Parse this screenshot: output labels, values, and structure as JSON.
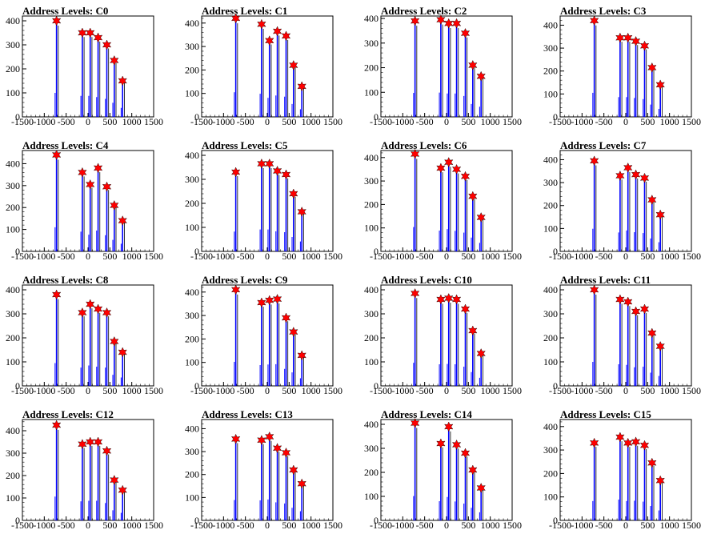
{
  "chart_data": [
    {
      "title": "Address Levels: C0",
      "type": "bar",
      "xlim": [
        -1500,
        1500
      ],
      "ylim": [
        0,
        420
      ],
      "x_ticks": [
        -1500,
        -1000,
        -500,
        0,
        500,
        1000,
        1500
      ],
      "y_ticks": [
        0,
        100,
        200,
        300,
        400
      ],
      "peaks": [
        {
          "x": -720,
          "y": 400
        },
        {
          "x": -130,
          "y": 350
        },
        {
          "x": 50,
          "y": 350
        },
        {
          "x": 230,
          "y": 330
        },
        {
          "x": 430,
          "y": 300
        },
        {
          "x": 600,
          "y": 235
        },
        {
          "x": 790,
          "y": 150
        }
      ]
    },
    {
      "title": "Address Levels: C1",
      "type": "bar",
      "xlim": [
        -1500,
        1500
      ],
      "ylim": [
        0,
        430
      ],
      "x_ticks": [
        -1500,
        -1000,
        -500,
        0,
        500,
        1000,
        1500
      ],
      "y_ticks": [
        0,
        100,
        200,
        300,
        400
      ],
      "peaks": [
        {
          "x": -720,
          "y": 420
        },
        {
          "x": -130,
          "y": 395
        },
        {
          "x": 50,
          "y": 325
        },
        {
          "x": 230,
          "y": 365
        },
        {
          "x": 430,
          "y": 345
        },
        {
          "x": 600,
          "y": 220
        },
        {
          "x": 790,
          "y": 130
        }
      ]
    },
    {
      "title": "Address Levels: C2",
      "type": "bar",
      "xlim": [
        -1500,
        1500
      ],
      "ylim": [
        0,
        410
      ],
      "x_ticks": [
        -1500,
        -1000,
        -500,
        0,
        500,
        1000,
        1500
      ],
      "y_ticks": [
        0,
        100,
        200,
        300,
        400
      ],
      "peaks": [
        {
          "x": -720,
          "y": 390
        },
        {
          "x": -130,
          "y": 395
        },
        {
          "x": 50,
          "y": 380
        },
        {
          "x": 230,
          "y": 380
        },
        {
          "x": 430,
          "y": 340
        },
        {
          "x": 600,
          "y": 210
        },
        {
          "x": 790,
          "y": 165
        }
      ]
    },
    {
      "title": "Address Levels: C3",
      "type": "bar",
      "xlim": [
        -1500,
        1500
      ],
      "ylim": [
        0,
        440
      ],
      "x_ticks": [
        -1500,
        -1000,
        -500,
        0,
        500,
        1000,
        1500
      ],
      "y_ticks": [
        0,
        100,
        200,
        300,
        400
      ],
      "peaks": [
        {
          "x": -720,
          "y": 420
        },
        {
          "x": -130,
          "y": 345
        },
        {
          "x": 50,
          "y": 345
        },
        {
          "x": 230,
          "y": 330
        },
        {
          "x": 430,
          "y": 310
        },
        {
          "x": 600,
          "y": 215
        },
        {
          "x": 790,
          "y": 140
        }
      ]
    },
    {
      "title": "Address Levels: C4",
      "type": "bar",
      "xlim": [
        -1500,
        1500
      ],
      "ylim": [
        0,
        460
      ],
      "x_ticks": [
        -1500,
        -1000,
        -500,
        0,
        500,
        1000,
        1500
      ],
      "y_ticks": [
        0,
        100,
        200,
        300,
        400
      ],
      "peaks": [
        {
          "x": -720,
          "y": 440
        },
        {
          "x": -130,
          "y": 360
        },
        {
          "x": 50,
          "y": 305
        },
        {
          "x": 230,
          "y": 380
        },
        {
          "x": 430,
          "y": 295
        },
        {
          "x": 600,
          "y": 210
        },
        {
          "x": 790,
          "y": 140
        }
      ]
    },
    {
      "title": "Address Levels: C5",
      "type": "bar",
      "xlim": [
        -1500,
        1500
      ],
      "ylim": [
        0,
        420
      ],
      "x_ticks": [
        -1500,
        -1000,
        -500,
        0,
        500,
        1000,
        1500
      ],
      "y_ticks": [
        0,
        100,
        200,
        300,
        400
      ],
      "peaks": [
        {
          "x": -720,
          "y": 330
        },
        {
          "x": -130,
          "y": 365
        },
        {
          "x": 50,
          "y": 365
        },
        {
          "x": 230,
          "y": 335
        },
        {
          "x": 430,
          "y": 320
        },
        {
          "x": 600,
          "y": 240
        },
        {
          "x": 790,
          "y": 165
        }
      ]
    },
    {
      "title": "Address Levels: C6",
      "type": "bar",
      "xlim": [
        -1500,
        1500
      ],
      "ylim": [
        0,
        430
      ],
      "x_ticks": [
        -1500,
        -1000,
        -500,
        0,
        500,
        1000,
        1500
      ],
      "y_ticks": [
        0,
        100,
        200,
        300,
        400
      ],
      "peaks": [
        {
          "x": -720,
          "y": 415
        },
        {
          "x": -130,
          "y": 355
        },
        {
          "x": 50,
          "y": 380
        },
        {
          "x": 230,
          "y": 350
        },
        {
          "x": 430,
          "y": 320
        },
        {
          "x": 600,
          "y": 235
        },
        {
          "x": 790,
          "y": 145
        }
      ]
    },
    {
      "title": "Address Levels: C7",
      "type": "bar",
      "xlim": [
        -1500,
        1500
      ],
      "ylim": [
        0,
        440
      ],
      "x_ticks": [
        -1500,
        -1000,
        -500,
        0,
        500,
        1000,
        1500
      ],
      "y_ticks": [
        0,
        100,
        200,
        300,
        400
      ],
      "peaks": [
        {
          "x": -720,
          "y": 395
        },
        {
          "x": -130,
          "y": 330
        },
        {
          "x": 50,
          "y": 365
        },
        {
          "x": 230,
          "y": 335
        },
        {
          "x": 430,
          "y": 320
        },
        {
          "x": 600,
          "y": 225
        },
        {
          "x": 790,
          "y": 160
        }
      ]
    },
    {
      "title": "Address Levels: C8",
      "type": "bar",
      "xlim": [
        -1500,
        1500
      ],
      "ylim": [
        0,
        420
      ],
      "x_ticks": [
        -1500,
        -1000,
        -500,
        0,
        500,
        1000,
        1500
      ],
      "y_ticks": [
        0,
        100,
        200,
        300,
        400
      ],
      "peaks": [
        {
          "x": -720,
          "y": 380
        },
        {
          "x": -130,
          "y": 305
        },
        {
          "x": 50,
          "y": 340
        },
        {
          "x": 230,
          "y": 320
        },
        {
          "x": 430,
          "y": 305
        },
        {
          "x": 600,
          "y": 185
        },
        {
          "x": 790,
          "y": 140
        }
      ]
    },
    {
      "title": "Address Levels: C9",
      "type": "bar",
      "xlim": [
        -1500,
        1500
      ],
      "ylim": [
        0,
        430
      ],
      "x_ticks": [
        -1500,
        -1000,
        -500,
        0,
        500,
        1000,
        1500
      ],
      "y_ticks": [
        0,
        100,
        200,
        300,
        400
      ],
      "peaks": [
        {
          "x": -720,
          "y": 410
        },
        {
          "x": -130,
          "y": 355
        },
        {
          "x": 50,
          "y": 365
        },
        {
          "x": 230,
          "y": 370
        },
        {
          "x": 430,
          "y": 290
        },
        {
          "x": 600,
          "y": 230
        },
        {
          "x": 790,
          "y": 130
        }
      ]
    },
    {
      "title": "Address Levels: C10",
      "type": "bar",
      "xlim": [
        -1500,
        1500
      ],
      "ylim": [
        0,
        420
      ],
      "x_ticks": [
        -1500,
        -1000,
        -500,
        0,
        500,
        1000,
        1500
      ],
      "y_ticks": [
        0,
        100,
        200,
        300,
        400
      ],
      "peaks": [
        {
          "x": -720,
          "y": 385
        },
        {
          "x": -130,
          "y": 360
        },
        {
          "x": 50,
          "y": 365
        },
        {
          "x": 230,
          "y": 360
        },
        {
          "x": 430,
          "y": 320
        },
        {
          "x": 600,
          "y": 230
        },
        {
          "x": 790,
          "y": 135
        }
      ]
    },
    {
      "title": "Address Levels: C11",
      "type": "bar",
      "xlim": [
        -1500,
        1500
      ],
      "ylim": [
        0,
        420
      ],
      "x_ticks": [
        -1500,
        -1000,
        -500,
        0,
        500,
        1000,
        1500
      ],
      "y_ticks": [
        0,
        100,
        200,
        300,
        400
      ],
      "peaks": [
        {
          "x": -720,
          "y": 400
        },
        {
          "x": -130,
          "y": 360
        },
        {
          "x": 50,
          "y": 350
        },
        {
          "x": 230,
          "y": 310
        },
        {
          "x": 430,
          "y": 320
        },
        {
          "x": 600,
          "y": 220
        },
        {
          "x": 790,
          "y": 165
        }
      ]
    },
    {
      "title": "Address Levels: C12",
      "type": "bar",
      "xlim": [
        -1500,
        1500
      ],
      "ylim": [
        0,
        450
      ],
      "x_ticks": [
        -1500,
        -1000,
        -500,
        0,
        500,
        1000,
        1500
      ],
      "y_ticks": [
        0,
        100,
        200,
        300,
        400
      ],
      "peaks": [
        {
          "x": -720,
          "y": 425
        },
        {
          "x": -130,
          "y": 340
        },
        {
          "x": 50,
          "y": 350
        },
        {
          "x": 230,
          "y": 350
        },
        {
          "x": 430,
          "y": 310
        },
        {
          "x": 600,
          "y": 180
        },
        {
          "x": 790,
          "y": 135
        }
      ]
    },
    {
      "title": "Address Levels: C13",
      "type": "bar",
      "xlim": [
        -1500,
        1500
      ],
      "ylim": [
        0,
        440
      ],
      "x_ticks": [
        -1500,
        -1000,
        -500,
        0,
        500,
        1000,
        1500
      ],
      "y_ticks": [
        0,
        100,
        200,
        300,
        400
      ],
      "peaks": [
        {
          "x": -720,
          "y": 355
        },
        {
          "x": -130,
          "y": 350
        },
        {
          "x": 50,
          "y": 365
        },
        {
          "x": 230,
          "y": 315
        },
        {
          "x": 430,
          "y": 295
        },
        {
          "x": 600,
          "y": 220
        },
        {
          "x": 790,
          "y": 160
        }
      ]
    },
    {
      "title": "Address Levels: C14",
      "type": "bar",
      "xlim": [
        -1500,
        1500
      ],
      "ylim": [
        0,
        420
      ],
      "x_ticks": [
        -1500,
        -1000,
        -500,
        0,
        500,
        1000,
        1500
      ],
      "y_ticks": [
        0,
        100,
        200,
        300,
        400
      ],
      "peaks": [
        {
          "x": -720,
          "y": 405
        },
        {
          "x": -130,
          "y": 320
        },
        {
          "x": 50,
          "y": 390
        },
        {
          "x": 230,
          "y": 315
        },
        {
          "x": 430,
          "y": 280
        },
        {
          "x": 600,
          "y": 210
        },
        {
          "x": 790,
          "y": 135
        }
      ]
    },
    {
      "title": "Address Levels: C15",
      "type": "bar",
      "xlim": [
        -1500,
        1500
      ],
      "ylim": [
        0,
        430
      ],
      "x_ticks": [
        -1500,
        -1000,
        -500,
        0,
        500,
        1000,
        1500
      ],
      "y_ticks": [
        0,
        100,
        200,
        300,
        400
      ],
      "peaks": [
        {
          "x": -720,
          "y": 330
        },
        {
          "x": -130,
          "y": 355
        },
        {
          "x": 50,
          "y": 330
        },
        {
          "x": 230,
          "y": 335
        },
        {
          "x": 430,
          "y": 320
        },
        {
          "x": 600,
          "y": 245
        },
        {
          "x": 790,
          "y": 170
        }
      ]
    }
  ],
  "colors": {
    "bars": "#0000ff",
    "secondary": "#000000",
    "marker": "#ff0000"
  }
}
